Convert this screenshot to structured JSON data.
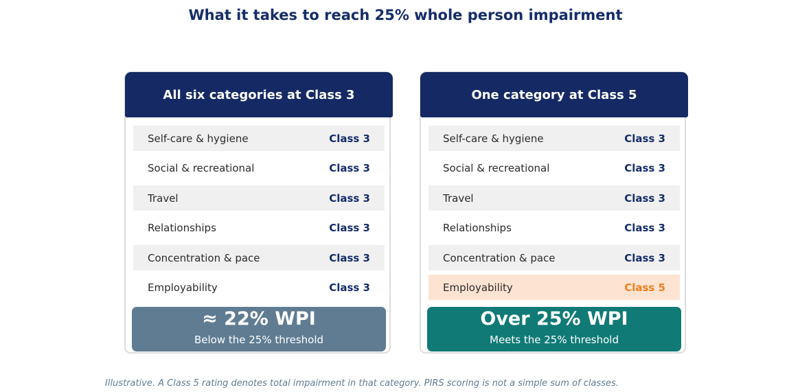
{
  "title": "What it takes to reach 25% whole person impairment",
  "panels": [
    {
      "header": "All six categories at Class 3",
      "rows": [
        {
          "category": "Self-care & hygiene",
          "class": "Class 3"
        },
        {
          "category": "Social & recreational",
          "class": "Class 3"
        },
        {
          "category": "Travel",
          "class": "Class 3"
        },
        {
          "category": "Relationships",
          "class": "Class 3"
        },
        {
          "category": "Concentration & pace",
          "class": "Class 3"
        },
        {
          "category": "Employability",
          "class": "Class 3"
        }
      ],
      "result_value": "≈ 22% WPI",
      "result_caption": "Below the 25% threshold",
      "result_color": "#5f7c92"
    },
    {
      "header": "One category at Class 5",
      "rows": [
        {
          "category": "Self-care & hygiene",
          "class": "Class 3"
        },
        {
          "category": "Social & recreational",
          "class": "Class 3"
        },
        {
          "category": "Travel",
          "class": "Class 3"
        },
        {
          "category": "Relationships",
          "class": "Class 3"
        },
        {
          "category": "Concentration & pace",
          "class": "Class 3"
        },
        {
          "category": "Employability",
          "class": "Class 5"
        }
      ],
      "result_value": "Over 25% WPI",
      "result_caption": "Meets the 25% threshold",
      "result_color": "#107a76"
    }
  ],
  "colors": {
    "header_bg": "#152a64",
    "class_text": "#152d69",
    "highlight_bg": "#fde4d2",
    "highlight_text": "#ee7f1f"
  },
  "footnote": "Illustrative. A Class 5 rating denotes total impairment in that category. PIRS scoring is not a simple sum of classes."
}
